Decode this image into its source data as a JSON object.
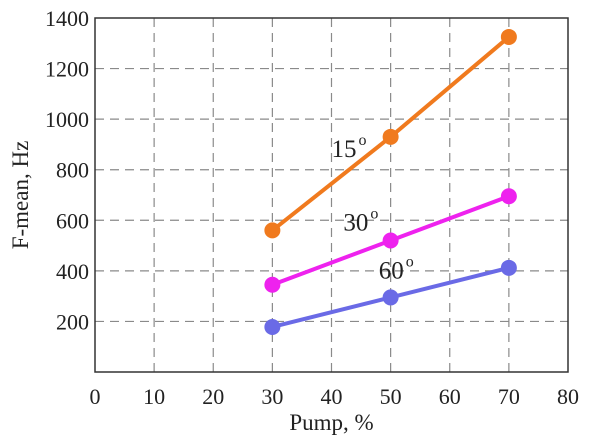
{
  "chart_data": {
    "type": "line",
    "xlabel": "Pump, %",
    "ylabel": "F-mean, Hz",
    "xlim": [
      0,
      80
    ],
    "ylim": [
      0,
      1400
    ],
    "xticks": [
      "0",
      "10",
      "20",
      "30",
      "40",
      "50",
      "60",
      "70",
      "80"
    ],
    "yticks": [
      "200",
      "400",
      "600",
      "800",
      "1000",
      "1200",
      "1400"
    ],
    "grid": true,
    "x": [
      30,
      50,
      70
    ],
    "series": [
      {
        "name": "15",
        "name_sup": "o",
        "color": "#f07a1e",
        "values": [
          560,
          930,
          1325
        ]
      },
      {
        "name": "30",
        "name_sup": "o",
        "color": "#ee22ee",
        "values": [
          345,
          520,
          695
        ]
      },
      {
        "name": "60",
        "name_sup": "o",
        "color": "#6a6ae6",
        "values": [
          178,
          295,
          412
        ]
      }
    ]
  }
}
